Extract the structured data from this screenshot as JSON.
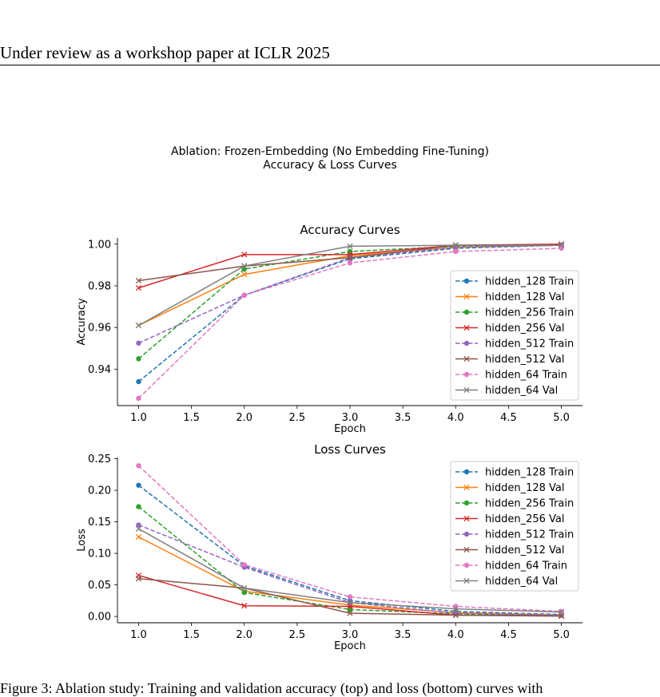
{
  "header": "Under review as a workshop paper at ICLR 2025",
  "suptitle_line1": "Ablation: Frozen-Embedding (No Embedding Fine-Tuning)",
  "suptitle_line2": "Accuracy & Loss Curves",
  "caption": "Figure 3: Ablation study: Training and validation accuracy (top) and loss (bottom) curves with",
  "colors": {
    "hidden_128": "#1f77b4",
    "hidden_128_val": "#ff7f0e",
    "hidden_256": "#2ca02c",
    "hidden_256_val": "#d62728",
    "hidden_512": "#9467bd",
    "hidden_512_val": "#8c564b",
    "hidden_64": "#e377c2",
    "hidden_64_val": "#7f7f7f"
  },
  "chart_data": [
    {
      "type": "line",
      "title": "Accuracy Curves",
      "xlabel": "Epoch",
      "ylabel": "Accuracy",
      "xlim": [
        0.8,
        5.2
      ],
      "ylim": [
        0.9225,
        1.003
      ],
      "xticks": [
        "1.0",
        "1.5",
        "2.0",
        "2.5",
        "3.0",
        "3.5",
        "4.0",
        "4.5",
        "5.0"
      ],
      "yticks": [
        "0.94",
        "0.96",
        "0.98",
        "1.00"
      ],
      "legend_position": "right",
      "x": [
        1,
        2,
        3,
        4,
        5
      ],
      "series": [
        {
          "name": "hidden_128 Train",
          "color": "#1f77b4",
          "dash": true,
          "marker": "circle",
          "values": [
            0.934,
            0.9755,
            0.993,
            0.998,
            0.9995
          ]
        },
        {
          "name": "hidden_128 Val",
          "color": "#ff7f0e",
          "dash": false,
          "marker": "x",
          "values": [
            0.961,
            0.9855,
            0.9945,
            0.9985,
            0.9995
          ]
        },
        {
          "name": "hidden_256 Train",
          "color": "#2ca02c",
          "dash": true,
          "marker": "circle",
          "values": [
            0.945,
            0.988,
            0.9965,
            0.999,
            0.9995
          ]
        },
        {
          "name": "hidden_256 Val",
          "color": "#d62728",
          "dash": false,
          "marker": "x",
          "values": [
            0.979,
            0.995,
            0.995,
            0.9995,
            1.0
          ]
        },
        {
          "name": "hidden_512 Train",
          "color": "#9467bd",
          "dash": true,
          "marker": "circle",
          "values": [
            0.9525,
            0.9755,
            0.9935,
            0.9985,
            0.9995
          ]
        },
        {
          "name": "hidden_512 Val",
          "color": "#8c564b",
          "dash": false,
          "marker": "x",
          "values": [
            0.9825,
            0.9895,
            0.9935,
            0.9995,
            0.9995
          ]
        },
        {
          "name": "hidden_64 Train",
          "color": "#e377c2",
          "dash": true,
          "marker": "circle",
          "values": [
            0.926,
            0.9755,
            0.991,
            0.9965,
            0.998
          ]
        },
        {
          "name": "hidden_64 Val",
          "color": "#7f7f7f",
          "dash": false,
          "marker": "x",
          "values": [
            0.961,
            0.9895,
            0.999,
            0.9995,
            0.9995
          ]
        }
      ]
    },
    {
      "type": "line",
      "title": "Loss Curves",
      "xlabel": "Epoch",
      "ylabel": "Loss",
      "xlim": [
        0.8,
        5.2
      ],
      "ylim": [
        -0.01,
        0.252
      ],
      "xticks": [
        "1.0",
        "1.5",
        "2.0",
        "2.5",
        "3.0",
        "3.5",
        "4.0",
        "4.5",
        "5.0"
      ],
      "yticks": [
        "0.00",
        "0.05",
        "0.10",
        "0.15",
        "0.20",
        "0.25"
      ],
      "legend_position": "upper right",
      "x": [
        1,
        2,
        3,
        4,
        5
      ],
      "series": [
        {
          "name": "hidden_128 Train",
          "color": "#1f77b4",
          "dash": true,
          "marker": "circle",
          "values": [
            0.208,
            0.08,
            0.025,
            0.008,
            0.003
          ]
        },
        {
          "name": "hidden_128 Val",
          "color": "#ff7f0e",
          "dash": false,
          "marker": "x",
          "values": [
            0.126,
            0.04,
            0.018,
            0.006,
            0.002
          ]
        },
        {
          "name": "hidden_256 Train",
          "color": "#2ca02c",
          "dash": true,
          "marker": "circle",
          "values": [
            0.174,
            0.038,
            0.011,
            0.004,
            0.002
          ]
        },
        {
          "name": "hidden_256 Val",
          "color": "#d62728",
          "dash": false,
          "marker": "x",
          "values": [
            0.065,
            0.017,
            0.016,
            0.002,
            0.001
          ]
        },
        {
          "name": "hidden_512 Train",
          "color": "#9467bd",
          "dash": true,
          "marker": "circle",
          "values": [
            0.145,
            0.078,
            0.022,
            0.005,
            0.002
          ]
        },
        {
          "name": "hidden_512 Val",
          "color": "#8c564b",
          "dash": false,
          "marker": "x",
          "values": [
            0.06,
            0.045,
            0.005,
            0.002,
            0.0005
          ]
        },
        {
          "name": "hidden_64 Train",
          "color": "#e377c2",
          "dash": true,
          "marker": "circle",
          "values": [
            0.239,
            0.082,
            0.031,
            0.016,
            0.008
          ]
        },
        {
          "name": "hidden_64 Val",
          "color": "#7f7f7f",
          "dash": false,
          "marker": "x",
          "values": [
            0.139,
            0.045,
            0.022,
            0.012,
            0.007
          ]
        }
      ]
    }
  ]
}
